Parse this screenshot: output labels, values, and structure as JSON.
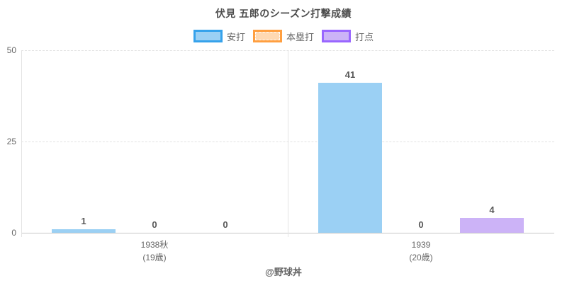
{
  "chart_data": {
    "type": "bar",
    "title": "伏見 五郎のシーズン打撃成績",
    "footer": "@野球丼",
    "categories": [
      {
        "line1": "1938秋",
        "line2": "(19歳)"
      },
      {
        "line1": "1939",
        "line2": "(20歳)"
      }
    ],
    "series": [
      {
        "name": "安打",
        "values": [
          1,
          41
        ],
        "fill": "#9bd0f4",
        "border": "#36a2eb",
        "border_style": "solid"
      },
      {
        "name": "本塁打",
        "values": [
          0,
          0
        ],
        "fill": "#ffd9b3",
        "border": "#ff9f40",
        "border_style": "dashed"
      },
      {
        "name": "打点",
        "values": [
          0,
          4
        ],
        "fill": "#ccb3f7",
        "border": "#9966ff",
        "border_style": "solid"
      }
    ],
    "ylim": [
      0,
      50
    ],
    "yticks": [
      0,
      25,
      50
    ],
    "show_value_labels": true,
    "legend_position": "top",
    "grid": "horizontal-dashed",
    "colors": {
      "title_text": "#4d4d4d",
      "axis_text": "#666666",
      "value_label_text": "#595959",
      "gridline": "#e2e2e2",
      "baseline": "#c6c6c6"
    }
  }
}
